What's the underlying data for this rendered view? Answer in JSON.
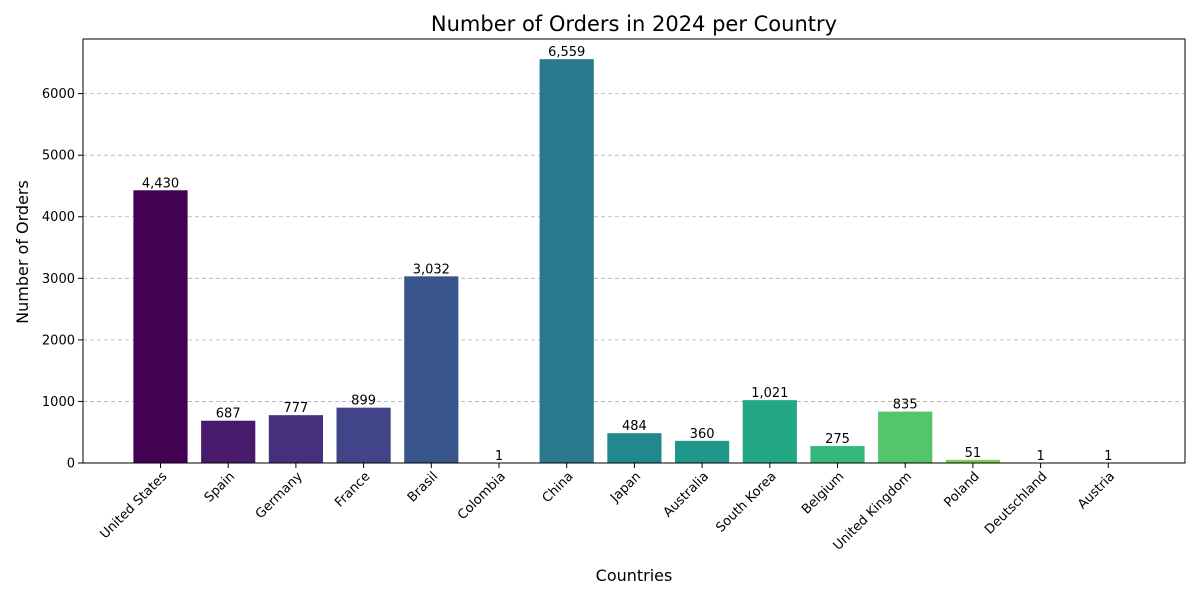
{
  "chart_data": {
    "type": "bar",
    "title": "Number of Orders in 2024 per Country",
    "xlabel": "Countries",
    "ylabel": "Number of Orders",
    "categories": [
      "United States",
      "Spain",
      "Germany",
      "France",
      "Brasil",
      "Colombia",
      "China",
      "Japan",
      "Australia",
      "South Korea",
      "Belgium",
      "United Kingdom",
      "Poland",
      "Deutschland",
      "Austria"
    ],
    "values": [
      4430,
      687,
      777,
      899,
      3032,
      1,
      6559,
      484,
      360,
      1021,
      275,
      835,
      51,
      1,
      1
    ],
    "value_labels": [
      "4,430",
      "687",
      "777",
      "899",
      "3,032",
      "1",
      "6,559",
      "484",
      "360",
      "1,021",
      "275",
      "835",
      "51",
      "1",
      "1"
    ],
    "colors": [
      "#440154",
      "#481a6c",
      "#472f7d",
      "#414487",
      "#39568c",
      "#31688e",
      "#2a788e",
      "#23888e",
      "#1f988b",
      "#22a884",
      "#35b779",
      "#54c568",
      "#7ad151",
      "#a5db36",
      "#d2e21b"
    ],
    "yticks": [
      0,
      1000,
      2000,
      3000,
      4000,
      5000,
      6000
    ],
    "ylim": [
      0,
      6887
    ],
    "grid": "y-dashed",
    "x_tick_rotation": 45
  }
}
